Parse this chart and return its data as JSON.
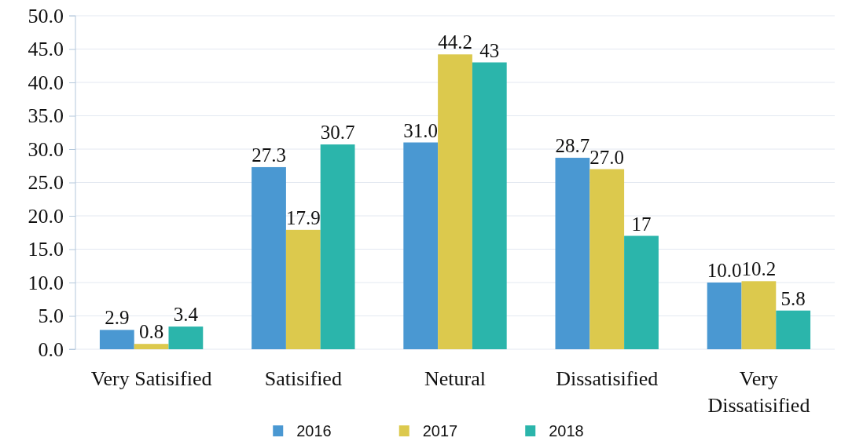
{
  "chart_data": {
    "type": "bar",
    "categories": [
      "Very Satisified",
      "Satisified",
      "Netural",
      "Dissatisified",
      "Very Dissatisified"
    ],
    "series": [
      {
        "name": "2016",
        "color": "#4a98d2",
        "values": [
          2.9,
          27.3,
          31.0,
          28.7,
          10.0
        ],
        "value_labels": [
          "2.9",
          "27.3",
          "31.0",
          "28.7",
          "10.0"
        ]
      },
      {
        "name": "2017",
        "color": "#dcc94d",
        "values": [
          0.8,
          17.9,
          44.2,
          27.0,
          10.2
        ],
        "value_labels": [
          "0.8",
          "17.9",
          "44.2",
          "27.0",
          "10.2"
        ]
      },
      {
        "name": "2018",
        "color": "#2bb5ab",
        "values": [
          3.4,
          30.7,
          43,
          17,
          5.8
        ],
        "value_labels": [
          "3.4",
          "30.7",
          "43",
          "17",
          "5.8"
        ]
      }
    ],
    "ylim": [
      0,
      50
    ],
    "yticks": [
      {
        "value": 0,
        "label": "0.0"
      },
      {
        "value": 5,
        "label": "5.0"
      },
      {
        "value": 10,
        "label": "10.0"
      },
      {
        "value": 15,
        "label": "15.0"
      },
      {
        "value": 20,
        "label": "20.0"
      },
      {
        "value": 25,
        "label": "25.0"
      },
      {
        "value": 30,
        "label": "30.0"
      },
      {
        "value": 35,
        "label": "35.0"
      },
      {
        "value": 40,
        "label": "40.0"
      },
      {
        "value": 45,
        "label": "45.0"
      },
      {
        "value": 50,
        "label": "50.0"
      }
    ],
    "grid": "y",
    "legend": "bottom"
  }
}
